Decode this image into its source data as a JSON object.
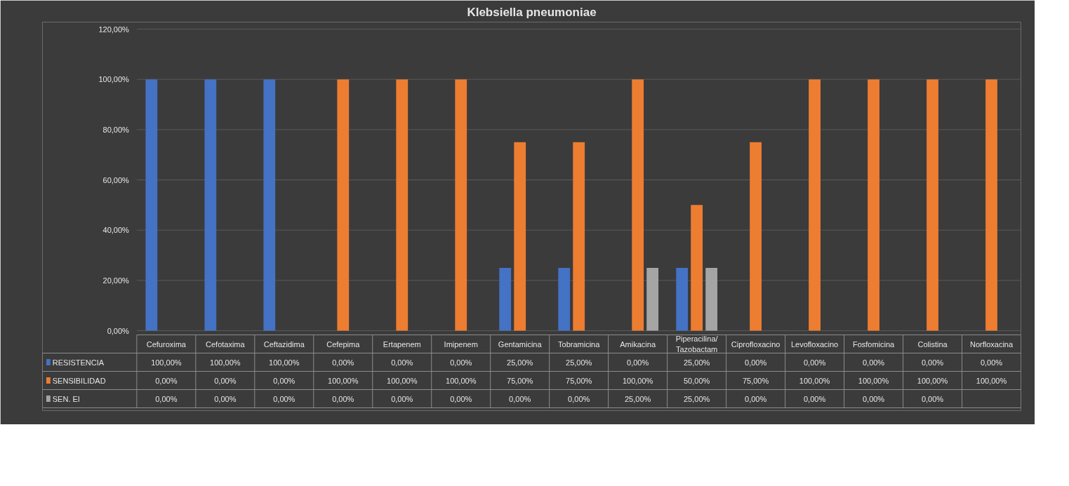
{
  "chart_data": {
    "type": "bar",
    "title": "Klebsiella pneumoniae",
    "categories": [
      "Cefuroxima",
      "Cefotaxima",
      "Ceftazidima",
      "Cefepima",
      "Ertapenem",
      "Imipenem",
      "Gentamicina",
      "Tobramicina",
      "Amikacina",
      "Piperacilina/\nTazobactam",
      "Ciprofloxacino",
      "Levofloxacino",
      "Fosfomicina",
      "Colistina",
      "Norfloxacina"
    ],
    "series": [
      {
        "name": "RESISTENCIA",
        "color": "#4472c4",
        "values": [
          100,
          100,
          100,
          0,
          0,
          0,
          25,
          25,
          0,
          25,
          0,
          0,
          0,
          0,
          0
        ],
        "value_labels": [
          "100,00%",
          "100,00%",
          "100,00%",
          "0,00%",
          "0,00%",
          "0,00%",
          "25,00%",
          "25,00%",
          "0,00%",
          "25,00%",
          "0,00%",
          "0,00%",
          "0,00%",
          "0,00%",
          "0,00%"
        ]
      },
      {
        "name": "SENSIBILIDAD",
        "color": "#ed7d31",
        "values": [
          0,
          0,
          0,
          100,
          100,
          100,
          75,
          75,
          100,
          50,
          75,
          100,
          100,
          100,
          100
        ],
        "value_labels": [
          "0,00%",
          "0,00%",
          "0,00%",
          "100,00%",
          "100,00%",
          "100,00%",
          "75,00%",
          "75,00%",
          "100,00%",
          "50,00%",
          "75,00%",
          "100,00%",
          "100,00%",
          "100,00%",
          "100,00%"
        ]
      },
      {
        "name": "SEN. EI",
        "color": "#a5a5a5",
        "values": [
          0,
          0,
          0,
          0,
          0,
          0,
          0,
          0,
          25,
          25,
          0,
          0,
          0,
          0,
          null
        ],
        "value_labels": [
          "0,00%",
          "0,00%",
          "0,00%",
          "0,00%",
          "0,00%",
          "0,00%",
          "0,00%",
          "0,00%",
          "25,00%",
          "25,00%",
          "0,00%",
          "0,00%",
          "0,00%",
          "0,00%",
          null
        ]
      }
    ],
    "ylim": [
      0,
      120
    ],
    "yticks": [
      {
        "value": 0,
        "label": "0,00%"
      },
      {
        "value": 20,
        "label": "20,00%"
      },
      {
        "value": 40,
        "label": "40,00%"
      },
      {
        "value": 60,
        "label": "60,00%"
      },
      {
        "value": 80,
        "label": "80,00%"
      },
      {
        "value": 100,
        "label": "100,00%"
      },
      {
        "value": 120,
        "label": "120,00%"
      }
    ],
    "grid": "y",
    "legend": "bottom"
  }
}
